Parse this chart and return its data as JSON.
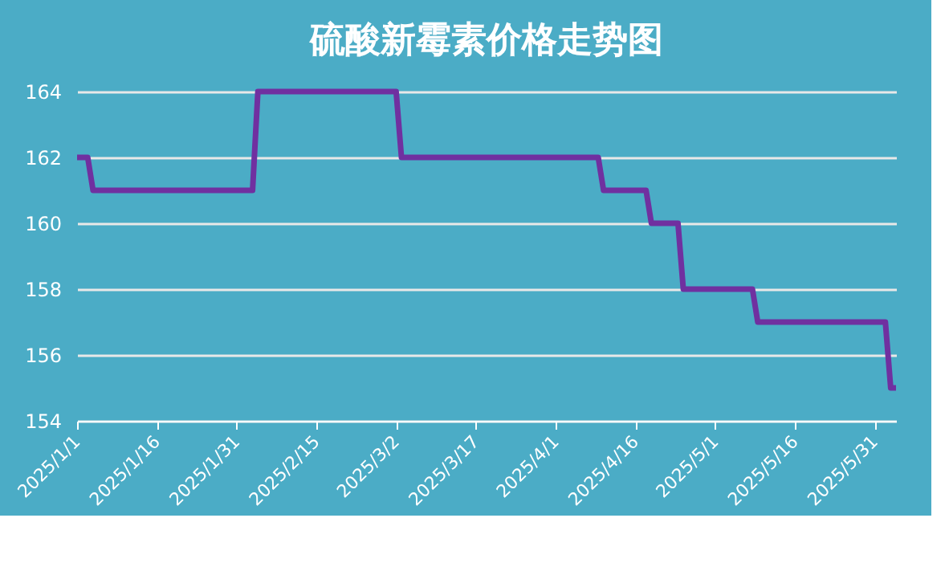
{
  "chart_data": {
    "type": "line",
    "title": "硫酸新霉素价格走势图",
    "x": [
      "2025-01-01",
      "2025-01-03",
      "2025-01-04",
      "2025-02-03",
      "2025-02-04",
      "2025-03-02",
      "2025-03-03",
      "2025-04-09",
      "2025-04-10",
      "2025-04-18",
      "2025-04-19",
      "2025-04-24",
      "2025-04-25",
      "2025-05-08",
      "2025-05-09",
      "2025-06-02",
      "2025-06-03",
      "2025-06-04"
    ],
    "series": [
      {
        "color": "#7030a0",
        "values": [
          162,
          162,
          161,
          161,
          164,
          164,
          162,
          162,
          161,
          161,
          160,
          160,
          158,
          158,
          157,
          157,
          155,
          155
        ]
      }
    ],
    "xlim": [
      "2025-01-01",
      "2025-06-04"
    ],
    "xticks": [
      {
        "value": "2025-01-01",
        "label": "2025/1/1"
      },
      {
        "value": "2025-01-16",
        "label": "2025/1/16"
      },
      {
        "value": "2025-01-31",
        "label": "2025/1/31"
      },
      {
        "value": "2025-02-15",
        "label": "2025/2/15"
      },
      {
        "value": "2025-03-02",
        "label": "2025/3/2"
      },
      {
        "value": "2025-03-17",
        "label": "2025/3/17"
      },
      {
        "value": "2025-04-01",
        "label": "2025/4/1"
      },
      {
        "value": "2025-04-16",
        "label": "2025/4/16"
      },
      {
        "value": "2025-05-01",
        "label": "2025/5/1"
      },
      {
        "value": "2025-05-16",
        "label": "2025/5/16"
      },
      {
        "value": "2025-05-31",
        "label": "2025/5/31"
      }
    ],
    "ylim": [
      154,
      164
    ],
    "yticks": [
      154,
      156,
      158,
      160,
      162,
      164
    ],
    "grid": "y",
    "line_style": "solid"
  }
}
